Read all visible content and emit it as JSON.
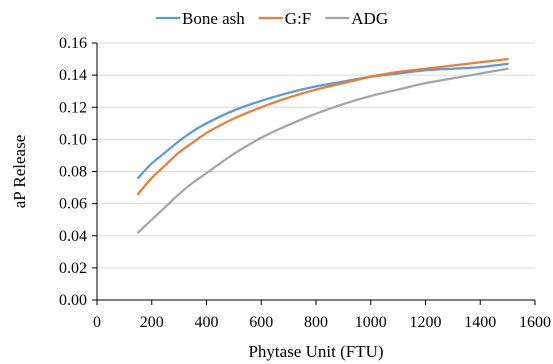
{
  "chart_data": {
    "type": "line",
    "title": "",
    "xlabel": "Phytase Unit (FTU)",
    "ylabel": "aP Release",
    "xlim": [
      0,
      1600
    ],
    "ylim": [
      0,
      0.16
    ],
    "xticks": [
      0,
      200,
      400,
      600,
      800,
      1000,
      1200,
      1400,
      1600
    ],
    "yticks": [
      0.0,
      0.02,
      0.04,
      0.06,
      0.08,
      0.1,
      0.12,
      0.14,
      0.16
    ],
    "xtick_labels": [
      "0",
      "200",
      "400",
      "600",
      "800",
      "1000",
      "1200",
      "1400",
      "1600"
    ],
    "ytick_labels": [
      "0.00",
      "0.02",
      "0.04",
      "0.06",
      "0.08",
      "0.10",
      "0.12",
      "0.14",
      "0.16"
    ],
    "grid": {
      "horizontal": true,
      "vertical": false
    },
    "legend_position": "top",
    "series": [
      {
        "name": "Bone ash",
        "color": "#5B9BD5",
        "x": [
          150,
          200,
          250,
          300,
          350,
          400,
          500,
          600,
          700,
          800,
          900,
          1000,
          1100,
          1200,
          1300,
          1400,
          1500
        ],
        "y": [
          0.076,
          0.085,
          0.092,
          0.099,
          0.105,
          0.11,
          0.118,
          0.124,
          0.129,
          0.133,
          0.136,
          0.139,
          0.141,
          0.143,
          0.144,
          0.145,
          0.147
        ]
      },
      {
        "name": "G:F",
        "color": "#ED7D31",
        "x": [
          150,
          200,
          250,
          300,
          350,
          400,
          500,
          600,
          700,
          800,
          900,
          1000,
          1100,
          1200,
          1300,
          1400,
          1500
        ],
        "y": [
          0.066,
          0.076,
          0.084,
          0.092,
          0.098,
          0.104,
          0.113,
          0.12,
          0.126,
          0.131,
          0.135,
          0.139,
          0.142,
          0.144,
          0.146,
          0.148,
          0.15
        ]
      },
      {
        "name": "ADG",
        "color": "#A5A5A5",
        "x": [
          150,
          200,
          250,
          300,
          350,
          400,
          500,
          600,
          700,
          800,
          900,
          1000,
          1100,
          1200,
          1300,
          1400,
          1500
        ],
        "y": [
          0.042,
          0.05,
          0.058,
          0.066,
          0.073,
          0.079,
          0.091,
          0.101,
          0.109,
          0.116,
          0.122,
          0.127,
          0.131,
          0.135,
          0.138,
          0.141,
          0.144
        ]
      }
    ]
  }
}
